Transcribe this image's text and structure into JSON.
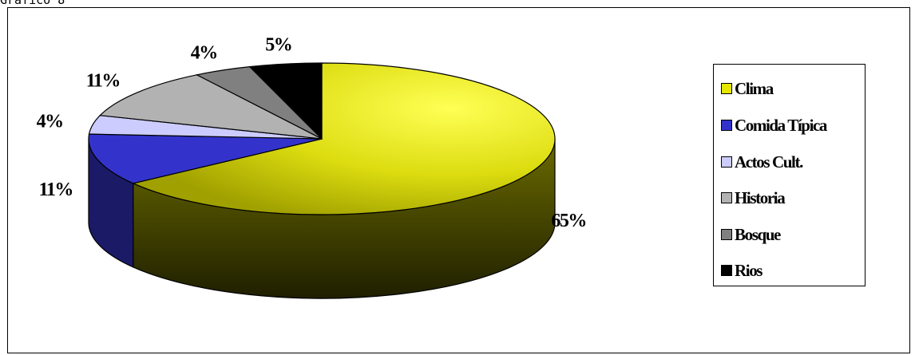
{
  "caption": "Gráfico 8",
  "chart_data": {
    "type": "pie",
    "three_d": true,
    "title": "",
    "slices": [
      {
        "label": "Clima",
        "value": 65,
        "display": "65%",
        "color": "#e6e600",
        "side_color": "#5c5c00"
      },
      {
        "label": "Comida Típica",
        "value": 11,
        "display": "11%",
        "color": "#3333cc",
        "side_color": "#1a1a66"
      },
      {
        "label": "Actos Cult.",
        "value": 4,
        "display": "4%",
        "color": "#ccccff",
        "side_color": "#66667f"
      },
      {
        "label": "Historia",
        "value": 11,
        "display": "11%",
        "color": "#b2b2b2",
        "side_color": "#595959"
      },
      {
        "label": "Bosque",
        "value": 4,
        "display": "4%",
        "color": "#808080",
        "side_color": "#404040"
      },
      {
        "label": "Rios",
        "value": 5,
        "display": "5%",
        "color": "#000000",
        "side_color": "#000000"
      }
    ],
    "legend_position": "right"
  }
}
